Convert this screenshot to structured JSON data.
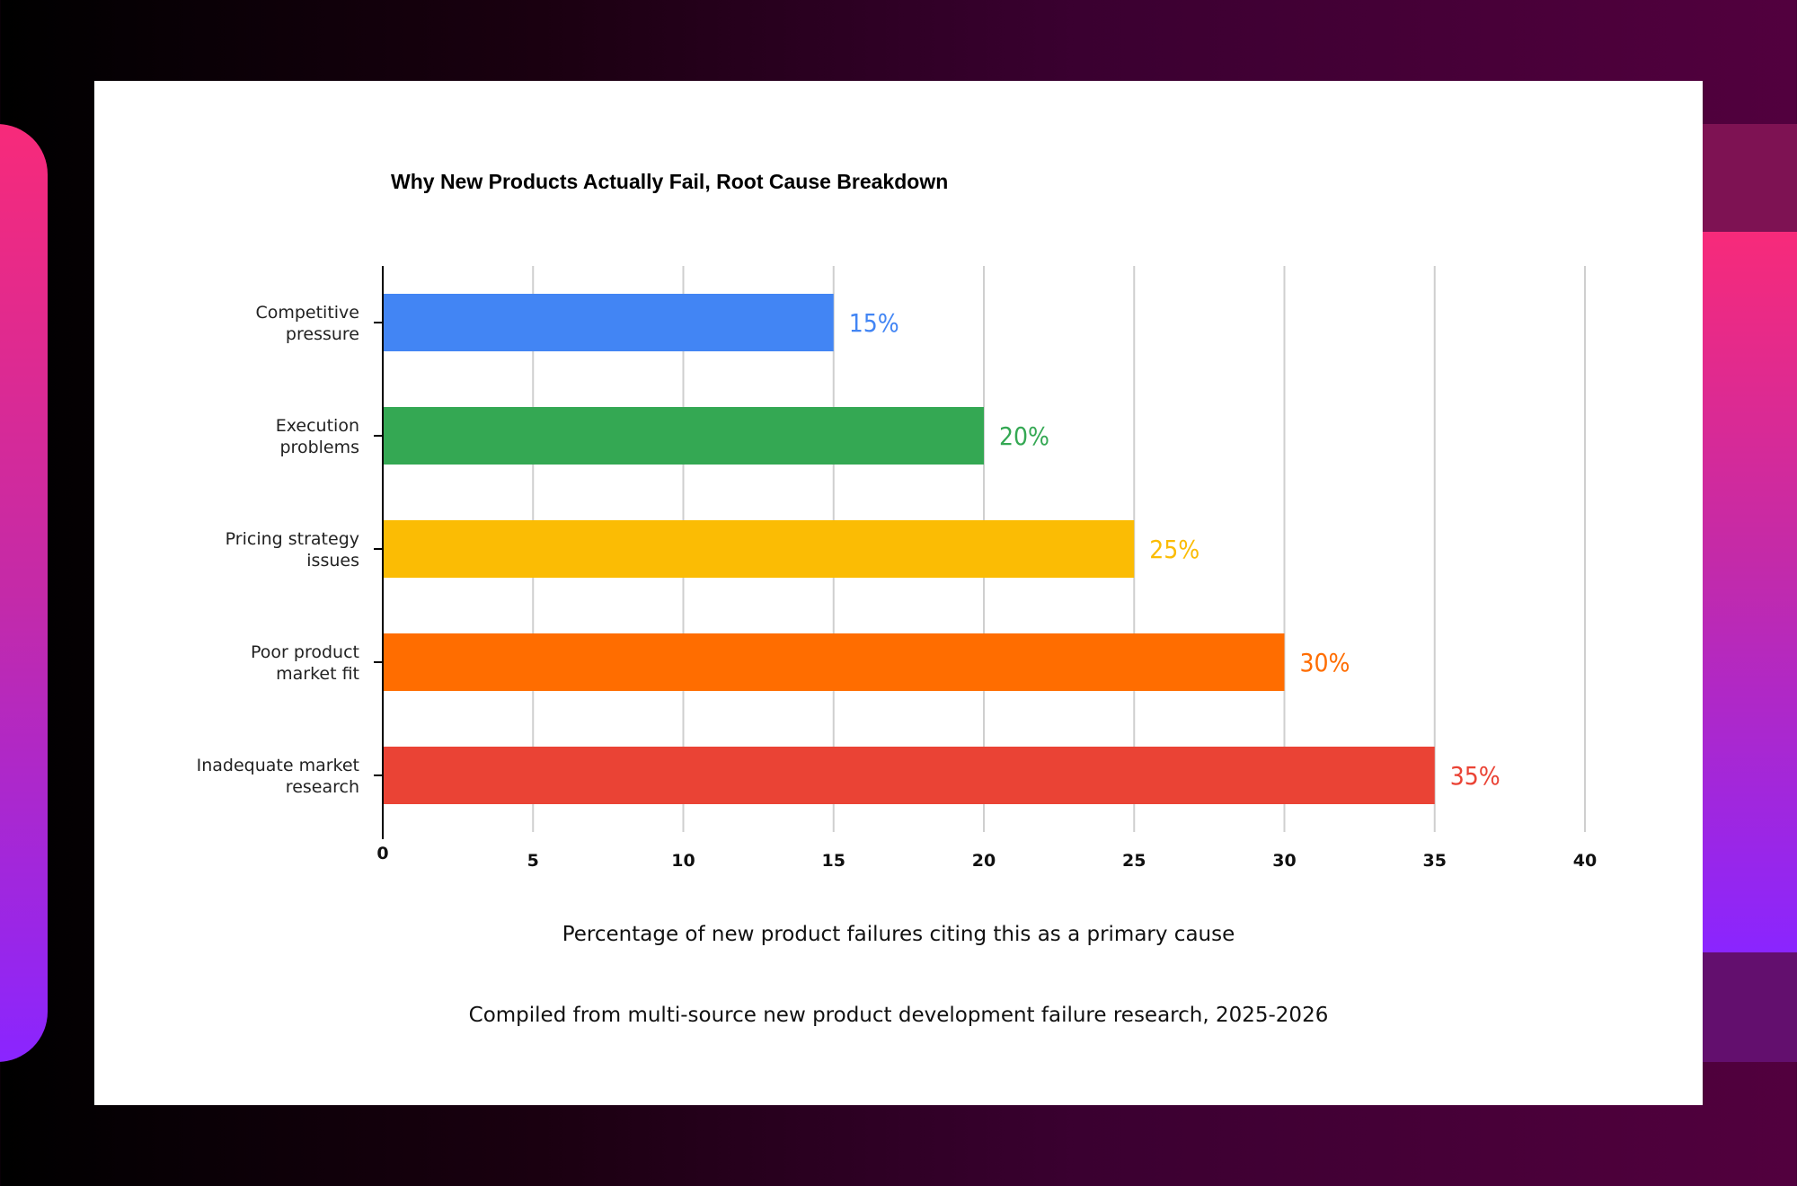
{
  "chart_data": {
    "type": "bar",
    "orientation": "horizontal",
    "title": "Why New Products Actually Fail, Root Cause Breakdown",
    "categories": [
      [
        "Competitive",
        "pressure"
      ],
      [
        "Execution",
        "problems"
      ],
      [
        "Pricing strategy",
        "issues"
      ],
      [
        "Poor product",
        "market fit"
      ],
      [
        "Inadequate market",
        "research"
      ]
    ],
    "values": [
      15,
      20,
      25,
      30,
      35
    ],
    "value_labels": [
      "15%",
      "20%",
      "25%",
      "30%",
      "35%"
    ],
    "colors": [
      "#4285f4",
      "#34a853",
      "#fbbc04",
      "#ff6d00",
      "#ea4335"
    ],
    "xlim": [
      0,
      40
    ],
    "xticks": [
      0,
      5,
      10,
      15,
      20,
      25,
      30,
      35,
      40
    ],
    "xlabel": "Percentage of new product failures citing this as a primary cause",
    "source": "Compiled from multi-source new product development failure research, 2025-2026",
    "grid": "vertical"
  }
}
